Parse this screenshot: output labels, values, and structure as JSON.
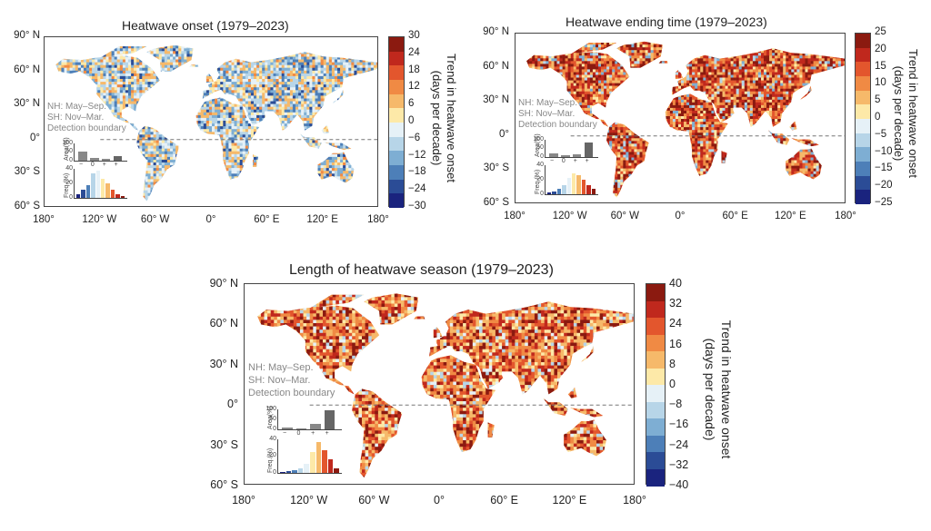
{
  "panels": [
    {
      "id": "onset",
      "title": "Heatwave onset (1979–2023)",
      "colorbar_label_line1": "Trend in heatwave onset",
      "colorbar_label_line2": "(days per decade)",
      "colorbar_ticks": [
        "30",
        "24",
        "18",
        "12",
        "6",
        "0",
        "−6",
        "−12",
        "−18",
        "−24",
        "−30"
      ],
      "colors": [
        "#8b1a10",
        "#c0281d",
        "#e3562d",
        "#f08a44",
        "#f6b96a",
        "#fde9a8",
        "#e6f1f7",
        "#b7d5e8",
        "#7eaed3",
        "#4d7fb8",
        "#2b4c96",
        "#1a237e"
      ],
      "note_lines": [
        "NH: May–Sep.",
        "SH: Nov–Mar.",
        "Detection boundary"
      ],
      "inset_area_label": "Area(%)",
      "inset_area_ticks": [
        "100",
        "50",
        "0"
      ],
      "inset_freq_label": "Freq.(%)",
      "inset_freq_ticks": [
        "40",
        "20",
        "0"
      ],
      "inset_area_symbols": [
        "−",
        "0",
        "+",
        "+"
      ],
      "area_values": [
        50,
        12,
        10,
        25
      ],
      "freq_values": [
        5,
        12,
        20,
        38,
        42,
        30,
        22,
        12,
        5,
        2
      ],
      "land_tone": "cool"
    },
    {
      "id": "ending",
      "title": "Heatwave ending time (1979–2023)",
      "colorbar_label_line1": "Trend in heatwave onset",
      "colorbar_label_line2": "(days per decade)",
      "colorbar_ticks": [
        "25",
        "20",
        "15",
        "10",
        "5",
        "0",
        "−5",
        "−10",
        "−15",
        "−20",
        "−25"
      ],
      "colors": [
        "#8b1a10",
        "#c0281d",
        "#e3562d",
        "#f08a44",
        "#f6b96a",
        "#fde9a8",
        "#e6f1f7",
        "#b7d5e8",
        "#7eaed3",
        "#4d7fb8",
        "#2b4c96",
        "#1a237e"
      ],
      "note_lines": [
        "NH: May–Sep.",
        "SH: Nov–Mar.",
        "Detection boundary"
      ],
      "inset_area_label": "Area(%)",
      "inset_area_ticks": [
        "100",
        "50",
        "0"
      ],
      "inset_freq_label": "Freq.(%)",
      "inset_freq_ticks": [
        "40",
        "20",
        "0"
      ],
      "inset_area_symbols": [
        "−",
        "0",
        "+",
        "+"
      ],
      "area_values": [
        18,
        8,
        15,
        80
      ],
      "freq_values": [
        2,
        4,
        8,
        14,
        25,
        32,
        30,
        22,
        14,
        8
      ],
      "land_tone": "warm"
    },
    {
      "id": "length",
      "title": "Length of heatwave season (1979–2023)",
      "colorbar_label_line1": "Trend in heatwave onset",
      "colorbar_label_line2": "(days per decade)",
      "colorbar_ticks": [
        "40",
        "32",
        "24",
        "16",
        "8",
        "0",
        "−8",
        "−16",
        "−24",
        "−32",
        "−40"
      ],
      "colors": [
        "#8b1a10",
        "#c0281d",
        "#e3562d",
        "#f08a44",
        "#f6b96a",
        "#fde9a8",
        "#e6f1f7",
        "#b7d5e8",
        "#7eaed3",
        "#4d7fb8",
        "#2b4c96",
        "#1a237e"
      ],
      "note_lines": [
        "NH: May–Sep.",
        "SH: Nov–Mar.",
        "Detection boundary"
      ],
      "inset_area_label": "Area(%)",
      "inset_area_ticks": [
        "100",
        "50",
        "0"
      ],
      "inset_freq_label": "Freq.(%)",
      "inset_freq_ticks": [
        "40",
        "20",
        "0"
      ],
      "inset_area_symbols": [
        "−",
        "0",
        "+",
        "+"
      ],
      "area_values": [
        8,
        4,
        25,
        95
      ],
      "freq_values": [
        1,
        2,
        3,
        6,
        12,
        28,
        42,
        30,
        18,
        6
      ],
      "land_tone": "hot"
    }
  ],
  "lat_labels": [
    "90° N",
    "60° N",
    "30° N",
    "0°",
    "30° S",
    "60° S"
  ],
  "lon_labels": [
    "180°",
    "120° W",
    "60° W",
    "0°",
    "60° E",
    "120° E",
    "180°"
  ]
}
